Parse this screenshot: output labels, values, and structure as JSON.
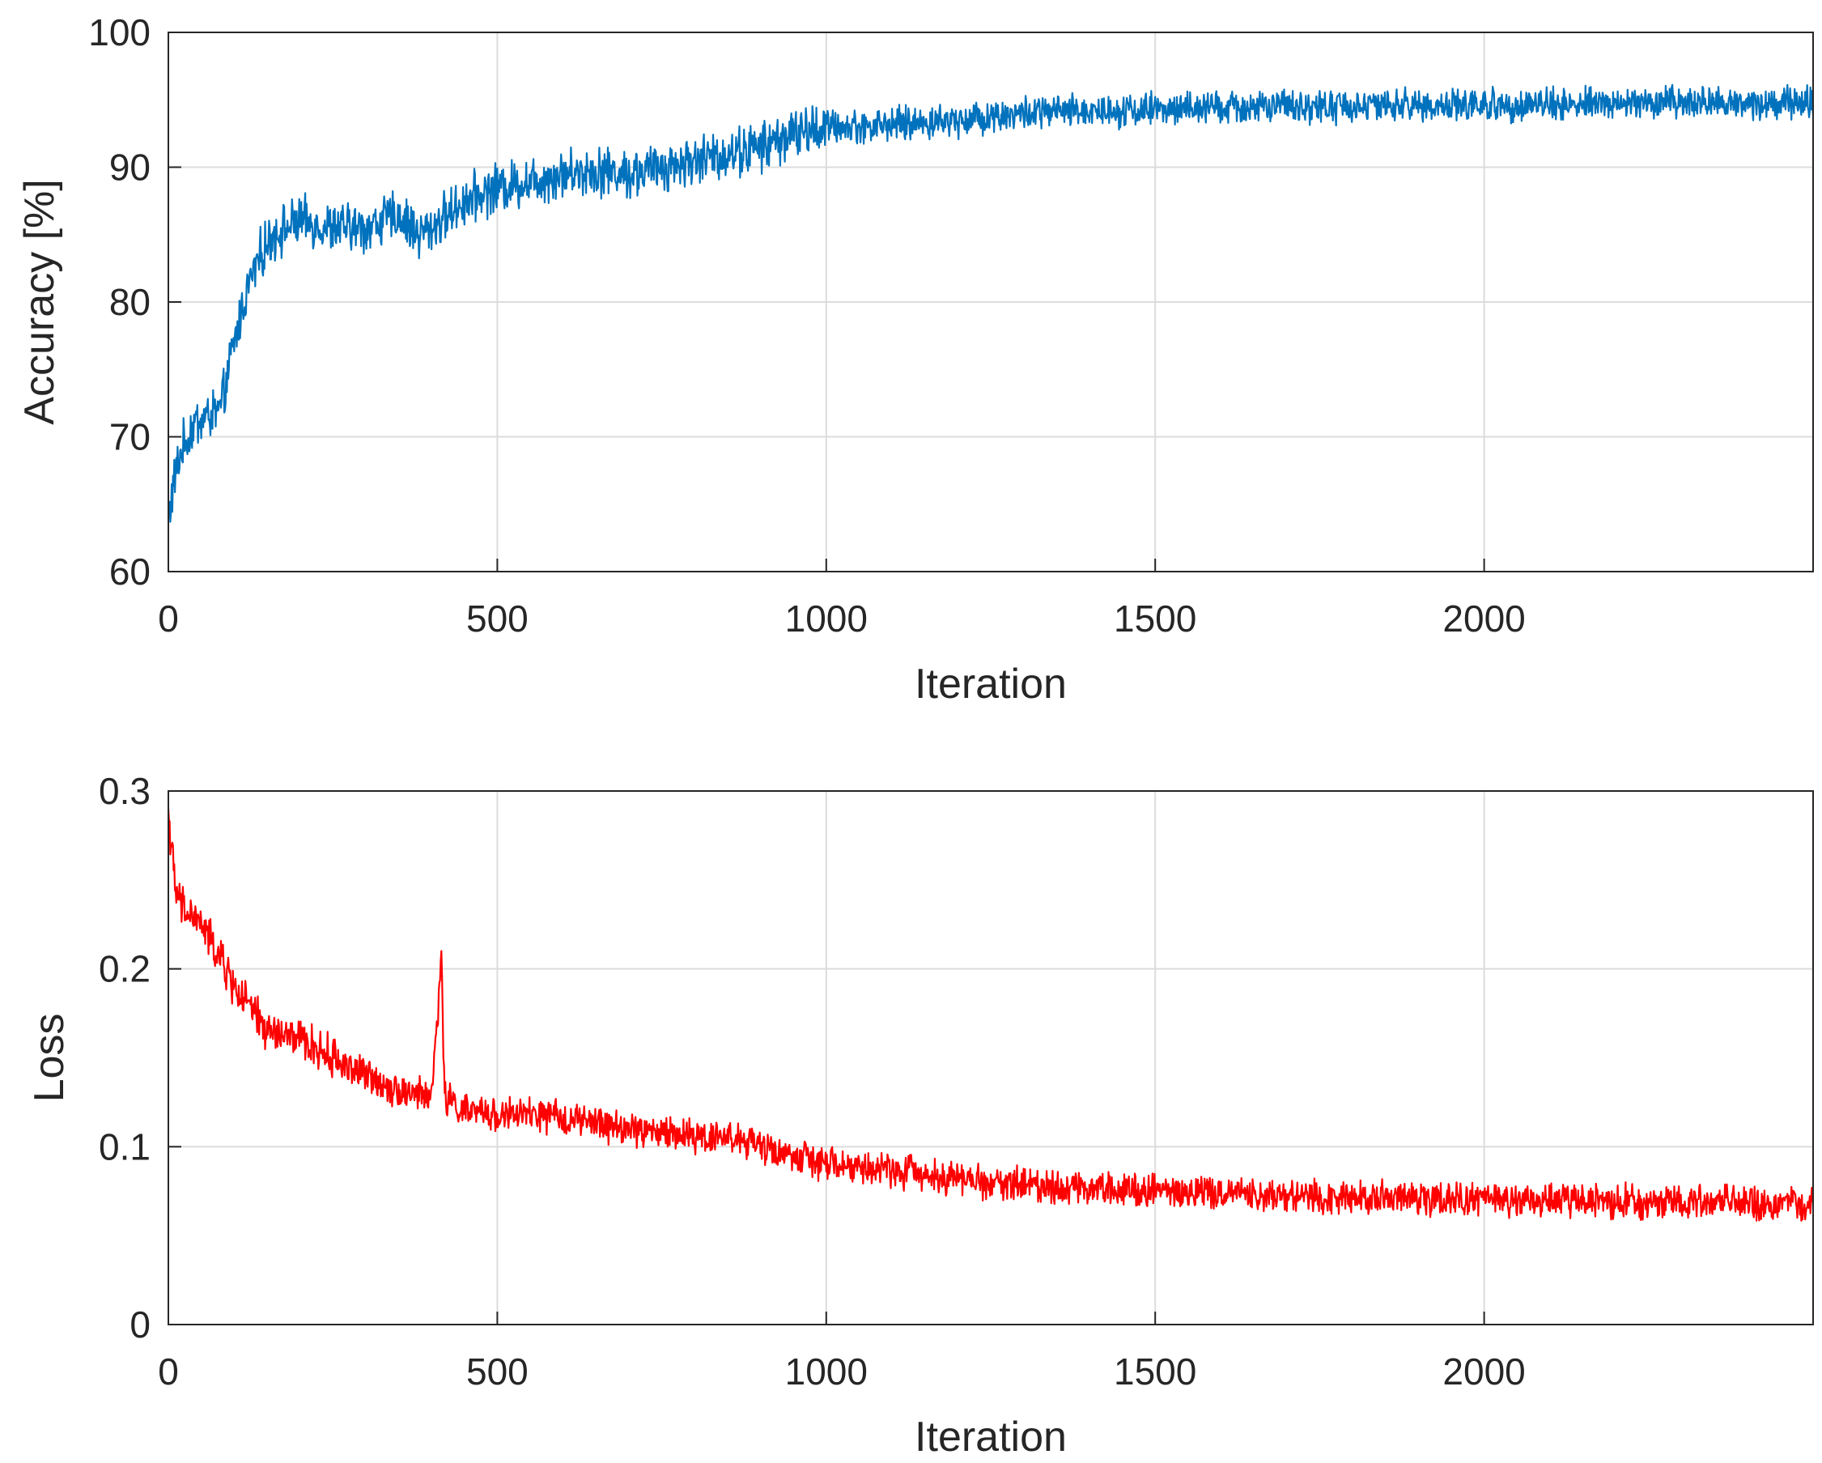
{
  "chart_data": [
    {
      "type": "line",
      "xlabel": "Iteration",
      "ylabel": "Accuracy [%]",
      "xlim": [
        0,
        2500
      ],
      "ylim": [
        60,
        100
      ],
      "xticks": [
        0,
        500,
        1000,
        1500,
        2000
      ],
      "xtick_labels": [
        "0",
        "500",
        "1000",
        "1500",
        "2000"
      ],
      "yticks": [
        60,
        70,
        80,
        90,
        100
      ],
      "ytick_labels": [
        "60",
        "70",
        "80",
        "90",
        "100"
      ],
      "grid": true,
      "color": "#0072BD",
      "series": [
        {
          "x": [
            0,
            10,
            20,
            40,
            60,
            80,
            100,
            120,
            140,
            160,
            180,
            200,
            250,
            300,
            350,
            380,
            400,
            450,
            500,
            550,
            600,
            650,
            700,
            750,
            800,
            850,
            900,
            950,
            1000,
            1050,
            1100,
            1150,
            1200,
            1250,
            1300,
            1400,
            1500,
            1600,
            1700,
            1800,
            1900,
            2000,
            2100,
            2200,
            2300,
            2400,
            2500
          ],
          "y": [
            64,
            67,
            69,
            71,
            71.5,
            72,
            77,
            81,
            83.5,
            85,
            85.5,
            86,
            85.5,
            85.5,
            86.5,
            85,
            85.5,
            87.5,
            88.5,
            89,
            89.5,
            89.8,
            89.5,
            90,
            90.5,
            91,
            91.5,
            92.5,
            93,
            93,
            93.2,
            93.3,
            93.5,
            93.8,
            94,
            94.2,
            94.3,
            94.4,
            94.5,
            94.5,
            94.6,
            94.6,
            94.7,
            94.7,
            94.8,
            94.8,
            94.8
          ]
        }
      ]
    },
    {
      "type": "line",
      "xlabel": "Iteration",
      "ylabel": "Loss",
      "xlim": [
        0,
        2500
      ],
      "ylim": [
        0,
        0.3
      ],
      "xticks": [
        0,
        500,
        1000,
        1500,
        2000
      ],
      "xtick_labels": [
        "0",
        "500",
        "1000",
        "1500",
        "2000"
      ],
      "yticks": [
        0,
        0.1,
        0.2,
        0.3
      ],
      "ytick_labels": [
        "0",
        "0.1",
        "0.2",
        "0.3"
      ],
      "grid": true,
      "color": "#FF0000",
      "series": [
        {
          "x": [
            0,
            10,
            20,
            50,
            80,
            100,
            150,
            200,
            250,
            300,
            350,
            400,
            415,
            420,
            450,
            500,
            550,
            600,
            650,
            700,
            750,
            800,
            850,
            900,
            950,
            1000,
            1050,
            1100,
            1150,
            1200,
            1250,
            1300,
            1400,
            1500,
            1600,
            1700,
            1800,
            1900,
            2000,
            2100,
            2200,
            2300,
            2400,
            2500
          ],
          "y": [
            0.29,
            0.245,
            0.235,
            0.225,
            0.205,
            0.19,
            0.165,
            0.16,
            0.15,
            0.14,
            0.132,
            0.128,
            0.205,
            0.128,
            0.12,
            0.118,
            0.118,
            0.116,
            0.113,
            0.11,
            0.108,
            0.106,
            0.106,
            0.1,
            0.095,
            0.09,
            0.088,
            0.087,
            0.085,
            0.082,
            0.08,
            0.079,
            0.077,
            0.076,
            0.074,
            0.073,
            0.072,
            0.071,
            0.07,
            0.07,
            0.069,
            0.069,
            0.068,
            0.067
          ]
        }
      ]
    }
  ]
}
